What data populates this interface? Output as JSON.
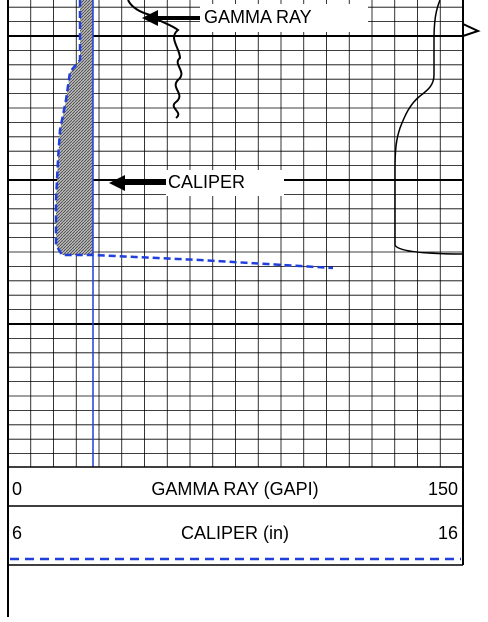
{
  "labels": {
    "gamma_ray": "GAMMA RAY",
    "caliper": "CALIPER"
  },
  "header": {
    "gamma_ray": {
      "min": 0,
      "title": "GAMMA RAY (GAPI)",
      "max": 150
    },
    "caliper": {
      "min": 6,
      "title": "CALIPER (in)",
      "max": 16
    }
  }
}
